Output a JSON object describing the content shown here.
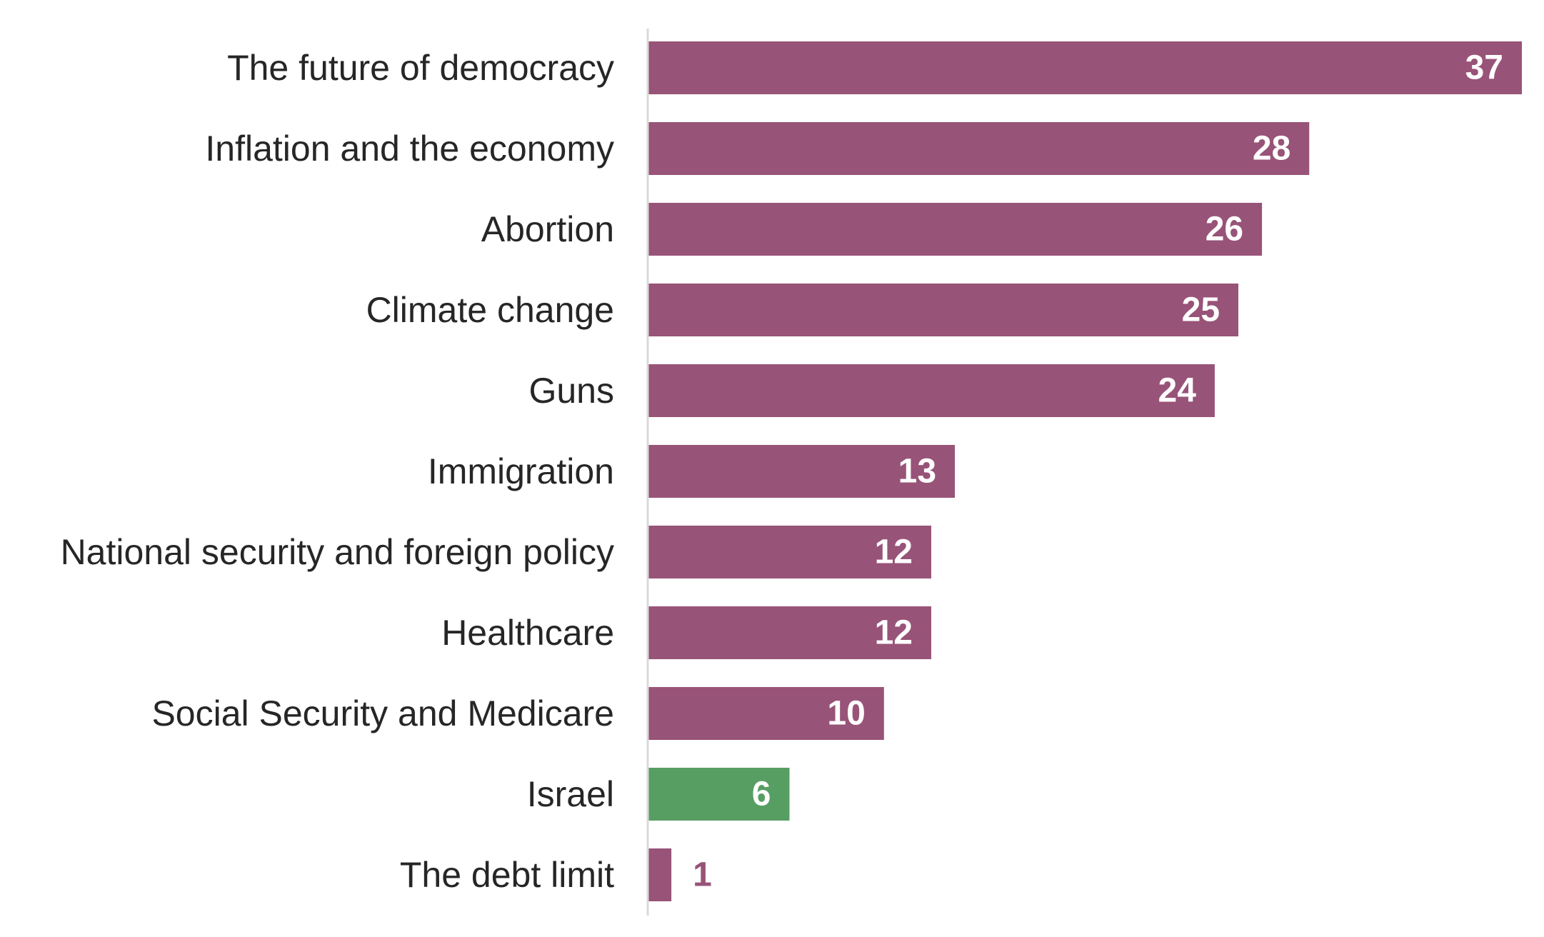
{
  "chart_data": {
    "type": "bar",
    "orientation": "horizontal",
    "title": "",
    "xlabel": "",
    "ylabel": "",
    "xlim": [
      0,
      37
    ],
    "grid": false,
    "legend": "none",
    "categories": [
      "The future of democracy",
      "Inflation and the economy",
      "Abortion",
      "Climate change",
      "Guns",
      "Immigration",
      "National security and foreign policy",
      "Healthcare",
      "Social Security and Medicare",
      "Israel",
      "The debt limit"
    ],
    "values": [
      37,
      28,
      26,
      25,
      24,
      13,
      12,
      12,
      10,
      6,
      1
    ],
    "colors": {
      "default": "#985378",
      "highlight": "#579e63",
      "axis_line": "#d9d9d9",
      "label_inside": "#ffffff",
      "label_outside": "#985378",
      "category_text": "#262626"
    },
    "highlight_categories": [
      "Israel"
    ]
  }
}
